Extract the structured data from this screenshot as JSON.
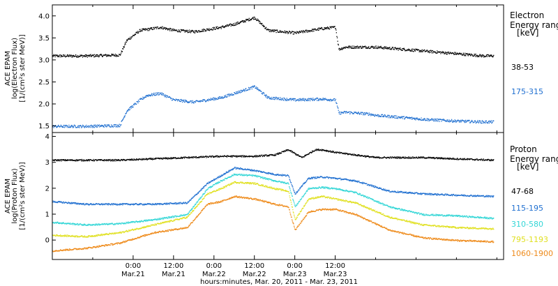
{
  "chart_data": [
    {
      "type": "scatter",
      "panel": "electron",
      "ylabel_lines": [
        "ACE EPAM",
        "log(Electron Flux)",
        "[1/(cm²s ster MeV)]"
      ],
      "ylim": [
        1.35,
        4.25
      ],
      "yticks": [
        "1.5",
        "2.0",
        "2.5",
        "3.0",
        "3.5",
        "4.0"
      ],
      "ytick_values": [
        1.5,
        2.0,
        2.5,
        3.0,
        3.5,
        4.0
      ],
      "legend_title_lines": [
        "Electron",
        "Energy range",
        "[keV]"
      ],
      "series": [
        {
          "name": "38-53",
          "color": "#000000",
          "x": [
            0,
            10,
            20,
            22,
            26,
            28,
            32,
            36,
            42,
            50,
            54,
            58,
            60,
            64,
            72,
            80,
            84,
            85,
            87,
            94,
            96,
            104,
            112,
            120,
            128,
            131
          ],
          "y": [
            3.1,
            3.1,
            3.12,
            3.45,
            3.68,
            3.7,
            3.75,
            3.68,
            3.65,
            3.75,
            3.82,
            3.92,
            3.97,
            3.68,
            3.62,
            3.72,
            3.75,
            3.25,
            3.3,
            3.3,
            3.3,
            3.25,
            3.2,
            3.15,
            3.1,
            3.1
          ]
        },
        {
          "name": "175-315",
          "color": "#1f6fd0",
          "x": [
            0,
            10,
            20,
            22,
            26,
            28,
            32,
            36,
            42,
            50,
            54,
            58,
            60,
            64,
            72,
            80,
            84,
            85,
            87,
            94,
            96,
            104,
            112,
            120,
            128,
            131
          ],
          "y": [
            1.5,
            1.5,
            1.52,
            1.85,
            2.1,
            2.2,
            2.25,
            2.1,
            2.05,
            2.15,
            2.25,
            2.35,
            2.4,
            2.15,
            2.1,
            2.12,
            2.1,
            1.8,
            1.82,
            1.78,
            1.75,
            1.7,
            1.65,
            1.62,
            1.6,
            1.6
          ]
        }
      ]
    },
    {
      "type": "scatter",
      "panel": "proton",
      "ylabel_lines": [
        "ACE EPAM",
        "log(Proton Flux)",
        "[1/(cm²s ster MeV)]"
      ],
      "ylim": [
        -0.75,
        4.15
      ],
      "yticks": [
        "0",
        "1",
        "2",
        "3",
        "4"
      ],
      "ytick_values": [
        0,
        1,
        2,
        3,
        4
      ],
      "legend_title_lines": [
        "Proton",
        "Energy range",
        "[keV]"
      ],
      "xlabel": "hours:minutes, Mar. 20, 2011 - Mar. 23, 2011",
      "x_tick_hours": [
        12,
        24,
        36,
        48,
        60,
        72,
        84,
        96,
        108,
        120,
        132
      ],
      "x_tick_labels": [
        {
          "hours": 24,
          "time": "0:00",
          "date": "Mar.21"
        },
        {
          "hours": 36,
          "time": "12:00",
          "date": "Mar.21"
        },
        {
          "hours": 48,
          "time": "0:00",
          "date": "Mar.22"
        },
        {
          "hours": 60,
          "time": "12:00",
          "date": "Mar.22"
        },
        {
          "hours": 72,
          "time": "0:00",
          "date": "Mar.23"
        },
        {
          "hours": 84,
          "time": "12:00",
          "date": "Mar.23"
        }
      ],
      "series": [
        {
          "name": "47-68",
          "color": "#000000",
          "x": [
            0,
            10,
            20,
            30,
            40,
            50,
            60,
            66,
            70,
            74,
            78,
            80,
            84,
            90,
            96,
            104,
            110,
            120,
            131
          ],
          "y": [
            3.1,
            3.1,
            3.1,
            3.15,
            3.2,
            3.25,
            3.25,
            3.3,
            3.5,
            3.2,
            3.5,
            3.5,
            3.4,
            3.3,
            3.2,
            3.2,
            3.2,
            3.15,
            3.1
          ]
        },
        {
          "name": "115-195",
          "color": "#1f6fd0",
          "x": [
            0,
            10,
            20,
            30,
            40,
            46,
            50,
            54,
            60,
            66,
            70,
            72,
            76,
            80,
            84,
            90,
            100,
            110,
            120,
            131
          ],
          "y": [
            1.5,
            1.4,
            1.4,
            1.4,
            1.45,
            2.2,
            2.5,
            2.8,
            2.7,
            2.55,
            2.5,
            1.8,
            2.4,
            2.45,
            2.4,
            2.3,
            1.9,
            1.8,
            1.75,
            1.7
          ]
        },
        {
          "name": "310-580",
          "color": "#33d6d6",
          "x": [
            0,
            10,
            20,
            30,
            40,
            46,
            50,
            54,
            60,
            66,
            70,
            72,
            76,
            80,
            84,
            90,
            100,
            110,
            120,
            131
          ],
          "y": [
            0.7,
            0.6,
            0.65,
            0.8,
            1.0,
            2.0,
            2.3,
            2.55,
            2.5,
            2.3,
            2.2,
            1.3,
            2.0,
            2.05,
            2.0,
            1.85,
            1.3,
            1.0,
            0.95,
            0.85
          ]
        },
        {
          "name": "795-1193",
          "color": "#e0e020",
          "x": [
            0,
            10,
            20,
            30,
            40,
            46,
            50,
            54,
            60,
            66,
            70,
            72,
            76,
            80,
            84,
            90,
            100,
            110,
            120,
            131
          ],
          "y": [
            0.2,
            0.15,
            0.3,
            0.6,
            0.9,
            1.8,
            2.0,
            2.25,
            2.2,
            2.0,
            1.9,
            0.8,
            1.6,
            1.7,
            1.6,
            1.45,
            0.9,
            0.6,
            0.5,
            0.45
          ]
        },
        {
          "name": "1060-1900",
          "color": "#ee8a1a",
          "x": [
            0,
            10,
            20,
            30,
            40,
            46,
            50,
            54,
            60,
            66,
            70,
            72,
            76,
            80,
            84,
            90,
            100,
            110,
            120,
            131
          ],
          "y": [
            -0.4,
            -0.3,
            -0.1,
            0.3,
            0.5,
            1.4,
            1.5,
            1.7,
            1.6,
            1.4,
            1.3,
            0.4,
            1.1,
            1.2,
            1.2,
            1.0,
            0.4,
            0.1,
            0.0,
            -0.05
          ]
        }
      ]
    }
  ]
}
